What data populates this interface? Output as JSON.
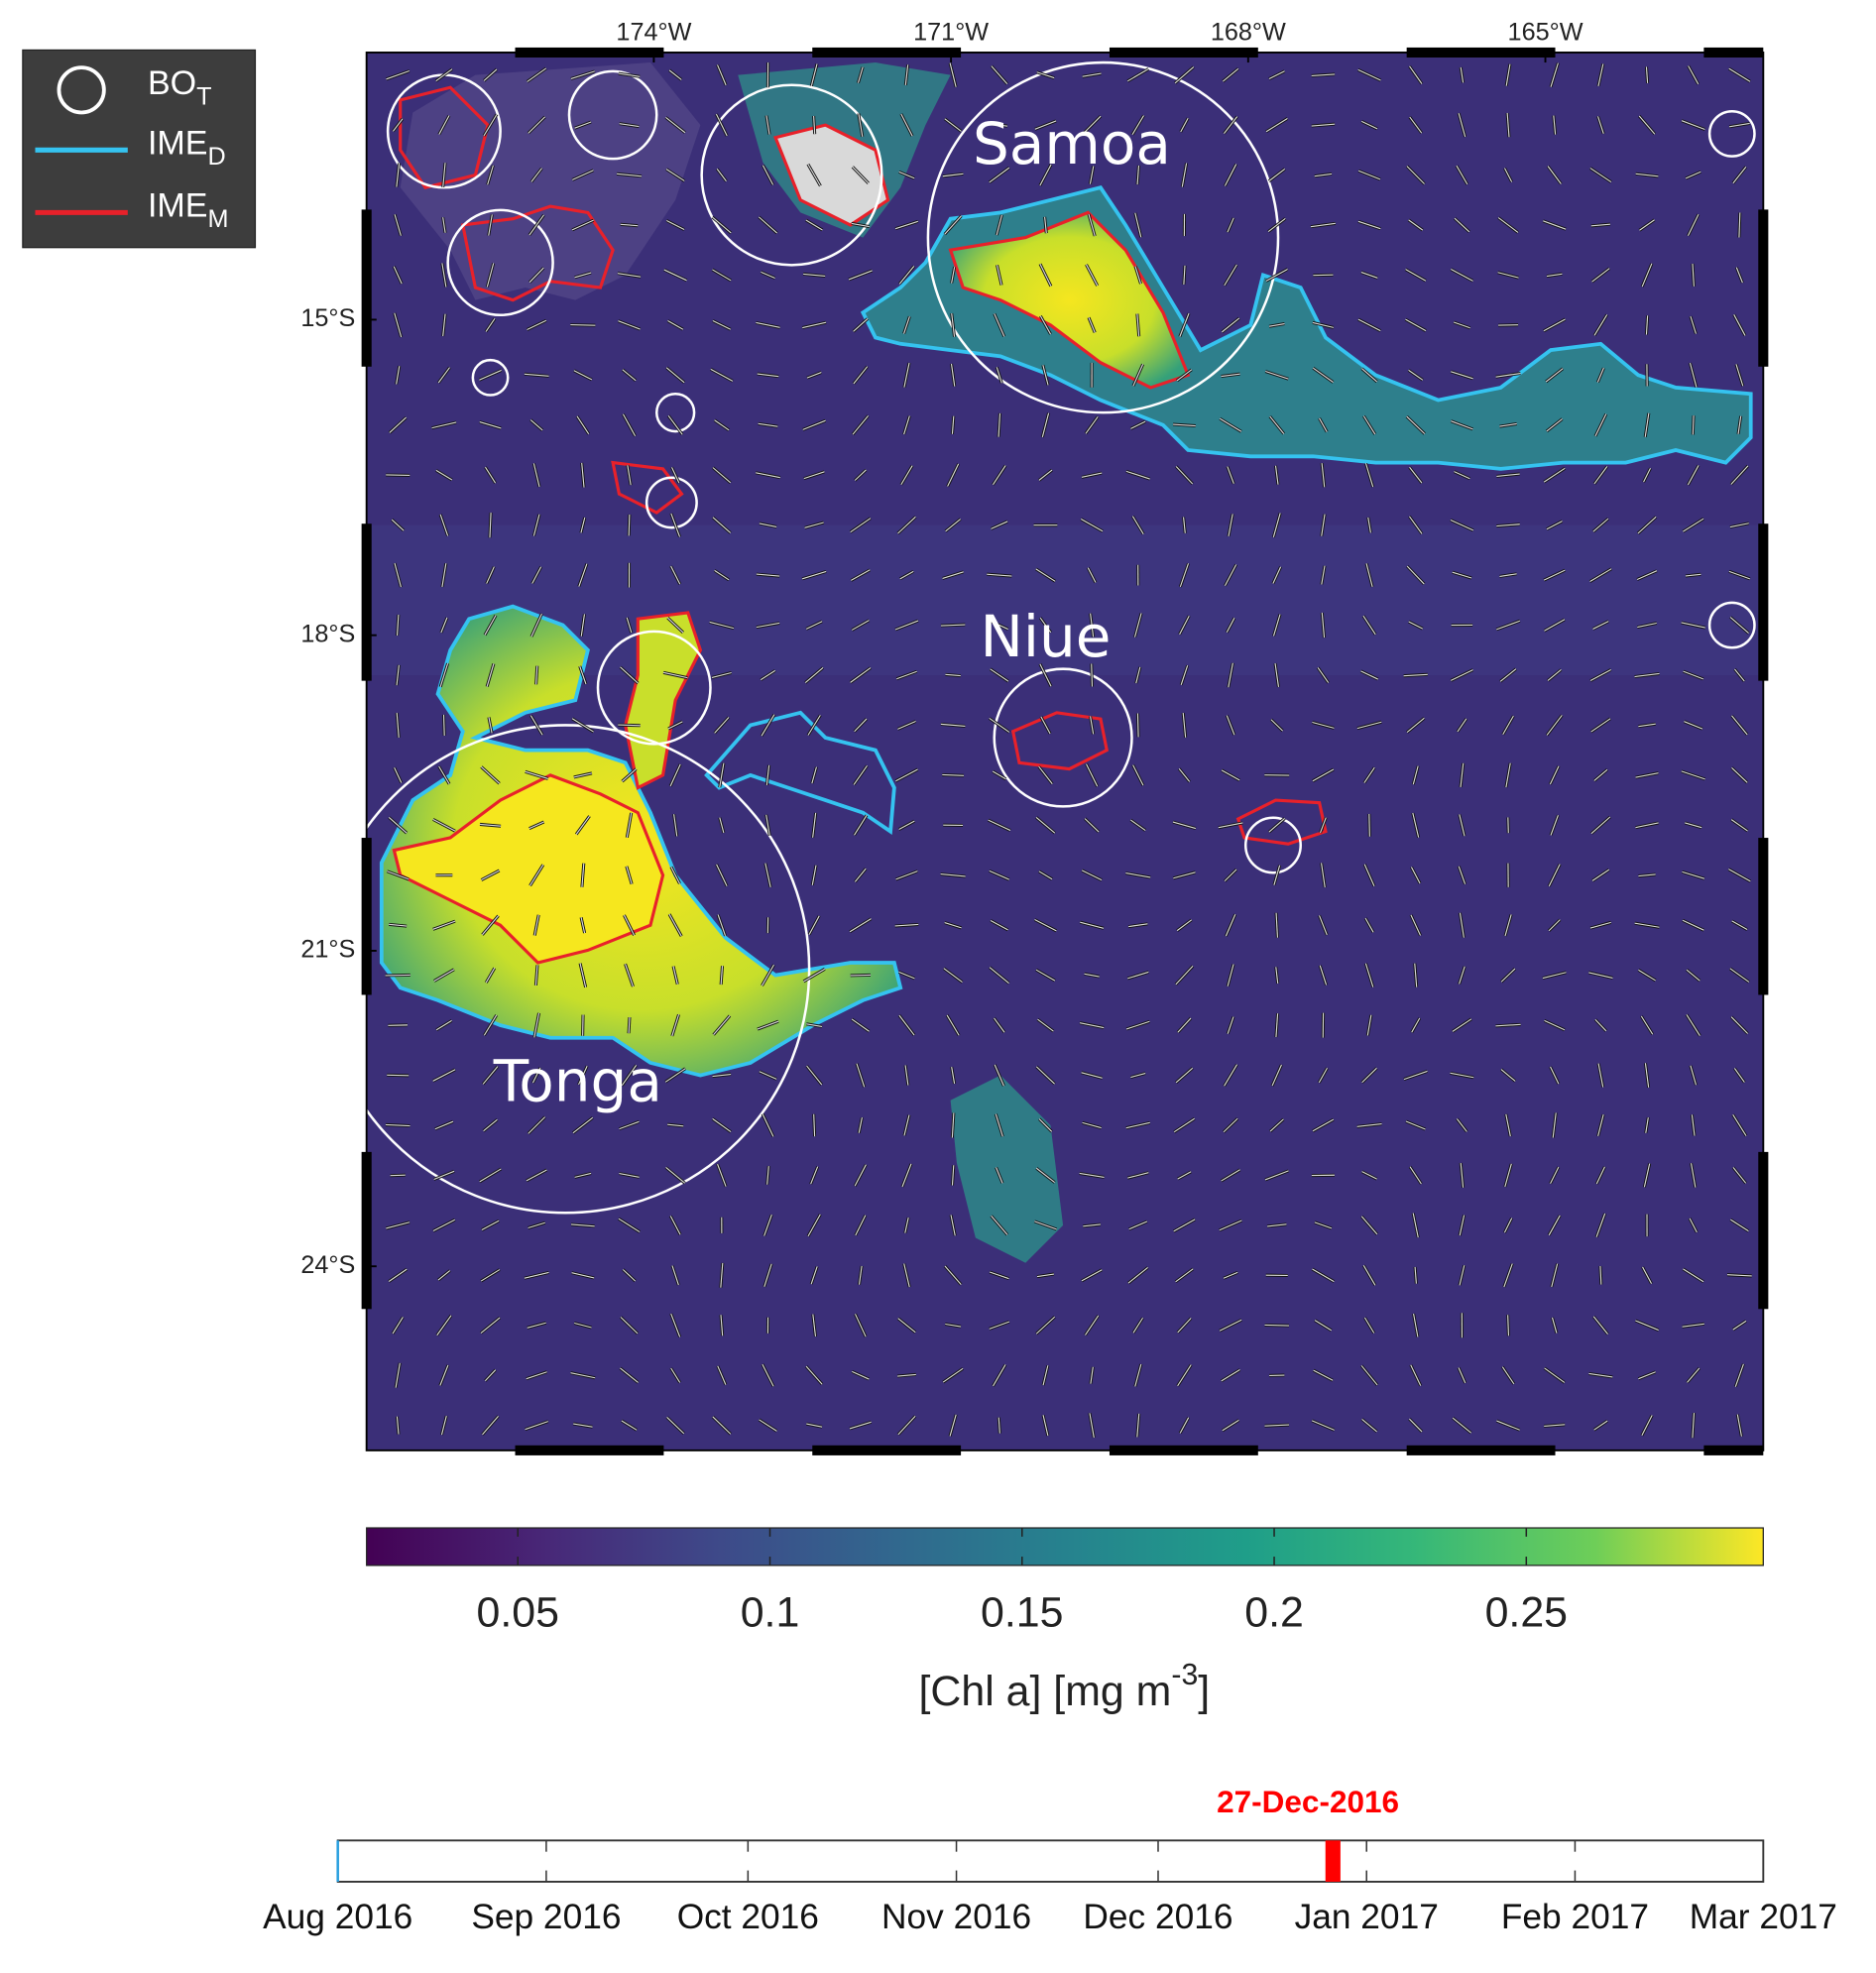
{
  "legend": [
    {
      "text": "BO",
      "sub": "T"
    },
    {
      "text": "IME",
      "sub": "D"
    },
    {
      "text": "IME",
      "sub": "M"
    }
  ],
  "map": {
    "xlim": [
      -176.9,
      -162.8
    ],
    "ylim": [
      -25.75,
      -12.46
    ],
    "xticks": [
      {
        "value": -174,
        "label": "174°W"
      },
      {
        "value": -171,
        "label": "171°W"
      },
      {
        "value": -168,
        "label": "168°W"
      },
      {
        "value": -165,
        "label": "165°W"
      }
    ],
    "yticks": [
      {
        "value": -15,
        "label": "15°S"
      },
      {
        "value": -18,
        "label": "18°S"
      },
      {
        "value": -21,
        "label": "21°S"
      },
      {
        "value": -24,
        "label": "24°S"
      }
    ],
    "places": [
      "Samoa",
      "Niue",
      "Tonga"
    ]
  },
  "colorbar": {
    "clim": [
      0.02,
      0.297
    ],
    "ticks": [
      0.05,
      0.1,
      0.15,
      0.2,
      0.25
    ],
    "label": {
      "text": "[Chl a] [mg m",
      "sup": "-3",
      "after": "]"
    }
  },
  "timeline": {
    "ticks": [
      "Aug 2016",
      "Sep 2016",
      "Oct 2016",
      "Nov 2016",
      "Dec 2016",
      "Jan 2017",
      "Feb 2017",
      "Mar 2017"
    ],
    "current": "27-Dec-2016"
  }
}
